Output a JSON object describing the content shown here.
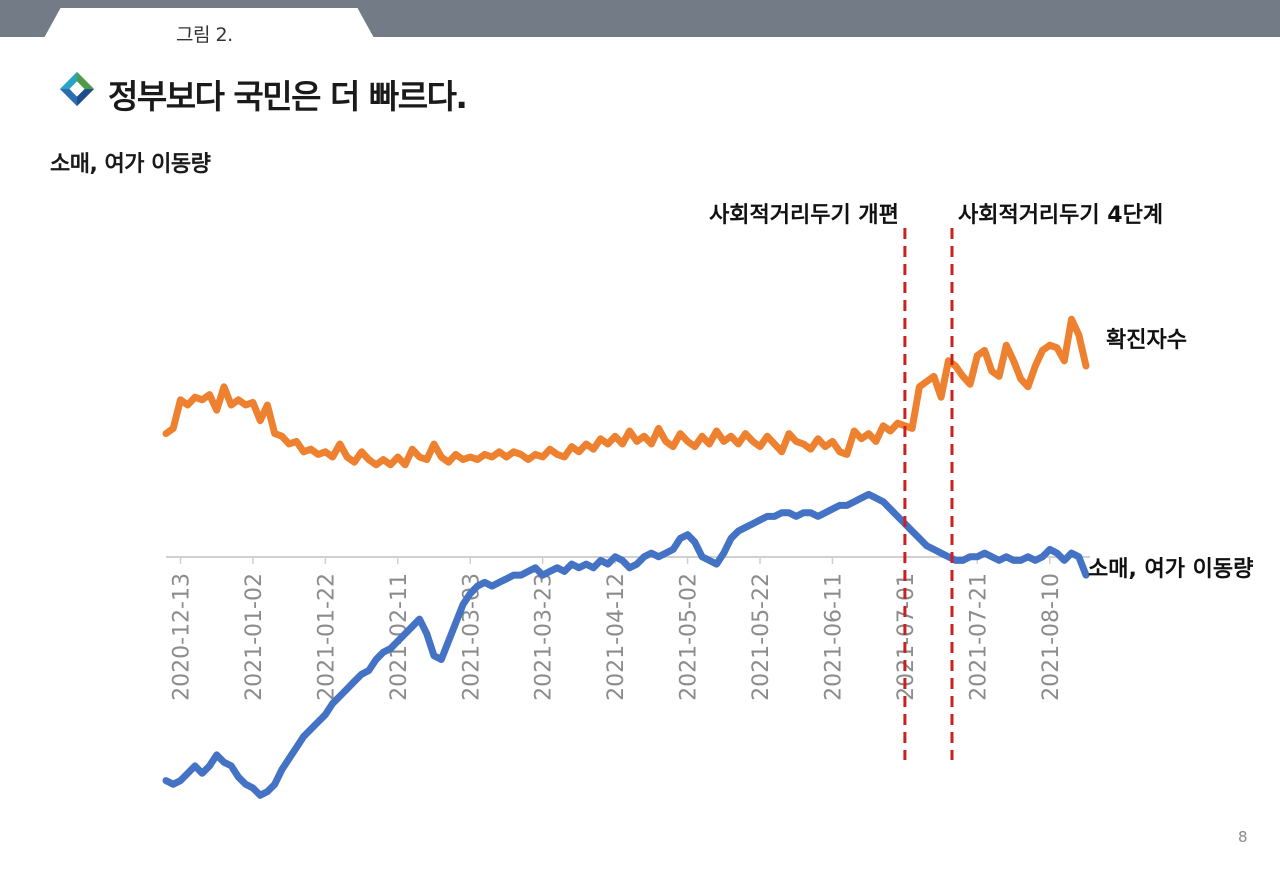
{
  "header": {
    "tab_label": "그림 2.",
    "title": "정부보다 국민은 더 빠르다.",
    "subtitle": "소매, 여가 이동량",
    "page_number": "8"
  },
  "colors": {
    "top_bar": "#737b86",
    "orange_series": "#ee8130",
    "blue_series": "#4472c4",
    "event_line": "#cc1f1f",
    "axis": "#d0d0d0",
    "tick_text": "#8c8c8c",
    "logo_green": "#4e9a48",
    "logo_blue": "#2a6db5",
    "logo_teal": "#2aa3c8"
  },
  "chart_data": {
    "type": "line",
    "title": "소매, 여가 이동량",
    "xlabel": "",
    "ylabel": "",
    "x_start_index": -4,
    "x_end_index": 250,
    "categories": [
      "2020-12-13",
      "2021-01-02",
      "2021-01-22",
      "2021-02-11",
      "2021-03-03",
      "2021-03-23",
      "2021-04-12",
      "2021-05-02",
      "2021-05-22",
      "2021-06-11",
      "2021-07-01",
      "2021-07-21",
      "2021-08-10"
    ],
    "category_day_index": [
      0,
      20,
      40,
      60,
      80,
      100,
      120,
      140,
      160,
      180,
      200,
      220,
      240
    ],
    "series": [
      {
        "name": "확진자수",
        "label": "확진자수",
        "color_key": "orange_series",
        "y_range": [
          0,
          100
        ],
        "points": [
          [
            -4,
            34
          ],
          [
            -2,
            36
          ],
          [
            0,
            47
          ],
          [
            2,
            45
          ],
          [
            4,
            48
          ],
          [
            6,
            47
          ],
          [
            8,
            49
          ],
          [
            10,
            43
          ],
          [
            12,
            52
          ],
          [
            14,
            45
          ],
          [
            16,
            47
          ],
          [
            18,
            45
          ],
          [
            20,
            46
          ],
          [
            22,
            39
          ],
          [
            24,
            45
          ],
          [
            26,
            34
          ],
          [
            28,
            33
          ],
          [
            30,
            30
          ],
          [
            32,
            31
          ],
          [
            34,
            27
          ],
          [
            36,
            28
          ],
          [
            38,
            26
          ],
          [
            40,
            27
          ],
          [
            42,
            25
          ],
          [
            44,
            30
          ],
          [
            46,
            25
          ],
          [
            48,
            23
          ],
          [
            50,
            27
          ],
          [
            52,
            24
          ],
          [
            54,
            22
          ],
          [
            56,
            24
          ],
          [
            58,
            22
          ],
          [
            60,
            25
          ],
          [
            62,
            22
          ],
          [
            64,
            28
          ],
          [
            66,
            25
          ],
          [
            68,
            24
          ],
          [
            70,
            30
          ],
          [
            72,
            25
          ],
          [
            74,
            23
          ],
          [
            76,
            26
          ],
          [
            78,
            24
          ],
          [
            80,
            25
          ],
          [
            82,
            24
          ],
          [
            84,
            26
          ],
          [
            86,
            25
          ],
          [
            88,
            27
          ],
          [
            90,
            25
          ],
          [
            92,
            27
          ],
          [
            94,
            26
          ],
          [
            96,
            24
          ],
          [
            98,
            26
          ],
          [
            100,
            25
          ],
          [
            102,
            28
          ],
          [
            104,
            26
          ],
          [
            106,
            25
          ],
          [
            108,
            29
          ],
          [
            110,
            27
          ],
          [
            112,
            30
          ],
          [
            114,
            28
          ],
          [
            116,
            32
          ],
          [
            118,
            30
          ],
          [
            120,
            33
          ],
          [
            122,
            30
          ],
          [
            124,
            35
          ],
          [
            126,
            31
          ],
          [
            128,
            33
          ],
          [
            130,
            30
          ],
          [
            132,
            36
          ],
          [
            134,
            31
          ],
          [
            136,
            29
          ],
          [
            138,
            34
          ],
          [
            140,
            31
          ],
          [
            142,
            29
          ],
          [
            144,
            33
          ],
          [
            146,
            30
          ],
          [
            148,
            35
          ],
          [
            150,
            31
          ],
          [
            152,
            33
          ],
          [
            154,
            30
          ],
          [
            156,
            34
          ],
          [
            158,
            31
          ],
          [
            160,
            29
          ],
          [
            162,
            33
          ],
          [
            164,
            30
          ],
          [
            166,
            27
          ],
          [
            168,
            34
          ],
          [
            170,
            31
          ],
          [
            172,
            30
          ],
          [
            174,
            28
          ],
          [
            176,
            32
          ],
          [
            178,
            29
          ],
          [
            180,
            31
          ],
          [
            182,
            27
          ],
          [
            184,
            26
          ],
          [
            186,
            35
          ],
          [
            188,
            32
          ],
          [
            190,
            34
          ],
          [
            192,
            31
          ],
          [
            194,
            37
          ],
          [
            196,
            35
          ],
          [
            198,
            38
          ],
          [
            200,
            37
          ],
          [
            202,
            36
          ],
          [
            204,
            52
          ],
          [
            206,
            54
          ],
          [
            208,
            56
          ],
          [
            210,
            48
          ],
          [
            212,
            62
          ],
          [
            214,
            60
          ],
          [
            216,
            56
          ],
          [
            218,
            53
          ],
          [
            220,
            64
          ],
          [
            222,
            66
          ],
          [
            224,
            58
          ],
          [
            226,
            56
          ],
          [
            228,
            68
          ],
          [
            230,
            62
          ],
          [
            232,
            55
          ],
          [
            234,
            52
          ],
          [
            236,
            60
          ],
          [
            238,
            66
          ],
          [
            240,
            68
          ],
          [
            242,
            67
          ],
          [
            244,
            62
          ],
          [
            246,
            78
          ],
          [
            248,
            72
          ],
          [
            250,
            60
          ]
        ]
      },
      {
        "name": "소매, 여가 이동량",
        "label": "소매, 여가 이동량",
        "color_key": "blue_series",
        "y_range": [
          0,
          100
        ],
        "points": [
          [
            -4,
            14
          ],
          [
            -2,
            13
          ],
          [
            0,
            14
          ],
          [
            2,
            16
          ],
          [
            4,
            18
          ],
          [
            6,
            16
          ],
          [
            8,
            18
          ],
          [
            10,
            21
          ],
          [
            12,
            19
          ],
          [
            14,
            18
          ],
          [
            16,
            15
          ],
          [
            18,
            13
          ],
          [
            20,
            12
          ],
          [
            22,
            10
          ],
          [
            24,
            11
          ],
          [
            26,
            13
          ],
          [
            28,
            17
          ],
          [
            30,
            20
          ],
          [
            32,
            23
          ],
          [
            34,
            26
          ],
          [
            36,
            28
          ],
          [
            38,
            30
          ],
          [
            40,
            32
          ],
          [
            42,
            35
          ],
          [
            44,
            37
          ],
          [
            46,
            39
          ],
          [
            48,
            41
          ],
          [
            50,
            43
          ],
          [
            52,
            44
          ],
          [
            54,
            47
          ],
          [
            56,
            49
          ],
          [
            58,
            50
          ],
          [
            60,
            52
          ],
          [
            62,
            54
          ],
          [
            64,
            56
          ],
          [
            66,
            58
          ],
          [
            68,
            54
          ],
          [
            70,
            48
          ],
          [
            72,
            47
          ],
          [
            74,
            52
          ],
          [
            76,
            57
          ],
          [
            78,
            62
          ],
          [
            80,
            65
          ],
          [
            82,
            67
          ],
          [
            84,
            68
          ],
          [
            86,
            67
          ],
          [
            88,
            68
          ],
          [
            90,
            69
          ],
          [
            92,
            70
          ],
          [
            94,
            70
          ],
          [
            96,
            71
          ],
          [
            98,
            72
          ],
          [
            100,
            70
          ],
          [
            102,
            71
          ],
          [
            104,
            72
          ],
          [
            106,
            71
          ],
          [
            108,
            73
          ],
          [
            110,
            72
          ],
          [
            112,
            73
          ],
          [
            114,
            72
          ],
          [
            116,
            74
          ],
          [
            118,
            73
          ],
          [
            120,
            75
          ],
          [
            122,
            74
          ],
          [
            124,
            72
          ],
          [
            126,
            73
          ],
          [
            128,
            75
          ],
          [
            130,
            76
          ],
          [
            132,
            75
          ],
          [
            134,
            76
          ],
          [
            136,
            77
          ],
          [
            138,
            80
          ],
          [
            140,
            81
          ],
          [
            142,
            79
          ],
          [
            144,
            75
          ],
          [
            146,
            74
          ],
          [
            148,
            73
          ],
          [
            150,
            76
          ],
          [
            152,
            80
          ],
          [
            154,
            82
          ],
          [
            156,
            83
          ],
          [
            158,
            84
          ],
          [
            160,
            85
          ],
          [
            162,
            86
          ],
          [
            164,
            86
          ],
          [
            166,
            87
          ],
          [
            168,
            87
          ],
          [
            170,
            86
          ],
          [
            172,
            87
          ],
          [
            174,
            87
          ],
          [
            176,
            86
          ],
          [
            178,
            87
          ],
          [
            180,
            88
          ],
          [
            182,
            89
          ],
          [
            184,
            89
          ],
          [
            186,
            90
          ],
          [
            188,
            91
          ],
          [
            190,
            92
          ],
          [
            192,
            91
          ],
          [
            194,
            90
          ],
          [
            196,
            88
          ],
          [
            198,
            86
          ],
          [
            200,
            84
          ],
          [
            202,
            82
          ],
          [
            204,
            80
          ],
          [
            206,
            78
          ],
          [
            208,
            77
          ],
          [
            210,
            76
          ],
          [
            212,
            75
          ],
          [
            214,
            74
          ],
          [
            216,
            74
          ],
          [
            218,
            75
          ],
          [
            220,
            75
          ],
          [
            222,
            76
          ],
          [
            224,
            75
          ],
          [
            226,
            74
          ],
          [
            228,
            75
          ],
          [
            230,
            74
          ],
          [
            232,
            74
          ],
          [
            234,
            75
          ],
          [
            236,
            74
          ],
          [
            238,
            75
          ],
          [
            240,
            77
          ],
          [
            242,
            76
          ],
          [
            244,
            74
          ],
          [
            246,
            76
          ],
          [
            248,
            75
          ],
          [
            250,
            70
          ]
        ]
      }
    ],
    "event_lines": [
      {
        "label": "사회적거리두기 개편",
        "day_index": 200
      },
      {
        "label": "사회적거리두기 4단계",
        "day_index": 213
      }
    ],
    "grid": false,
    "legend": "direct labels at right end of each series"
  }
}
